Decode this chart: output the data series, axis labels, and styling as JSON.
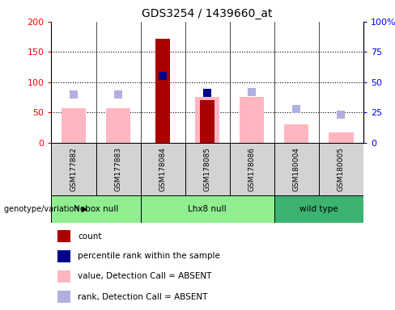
{
  "title": "GDS3254 / 1439660_at",
  "samples": [
    "GSM177882",
    "GSM177883",
    "GSM178084",
    "GSM178085",
    "GSM178086",
    "GSM180004",
    "GSM180005"
  ],
  "count_values": [
    null,
    null,
    172,
    70,
    null,
    null,
    null
  ],
  "value_absent": [
    57,
    57,
    null,
    75,
    75,
    30,
    17
  ],
  "rank_absent_right": [
    40,
    40,
    null,
    null,
    42,
    28,
    23
  ],
  "percentile_rank_right": [
    null,
    null,
    55,
    41,
    null,
    null,
    null
  ],
  "ylim_left": [
    0,
    200
  ],
  "ylim_right": [
    0,
    100
  ],
  "yticks_left": [
    0,
    50,
    100,
    150,
    200
  ],
  "yticks_right": [
    0,
    25,
    50,
    75,
    100
  ],
  "yticklabels_left": [
    "0",
    "50",
    "100",
    "150",
    "200"
  ],
  "yticklabels_right": [
    "0",
    "25",
    "50",
    "75",
    "100%"
  ],
  "color_count": "#AA0000",
  "color_percentile": "#00008B",
  "color_value_absent": "#FFB6C1",
  "color_rank_absent": "#B0B0E0",
  "legend_items": [
    {
      "label": "count",
      "color": "#AA0000"
    },
    {
      "label": "percentile rank within the sample",
      "color": "#00008B"
    },
    {
      "label": "value, Detection Call = ABSENT",
      "color": "#FFB6C1"
    },
    {
      "label": "rank, Detection Call = ABSENT",
      "color": "#B0B0E0"
    }
  ],
  "group_info": [
    {
      "label": "Nobox null",
      "start": 0,
      "end": 1,
      "color": "#90EE90"
    },
    {
      "label": "Lhx8 null",
      "start": 2,
      "end": 4,
      "color": "#90EE90"
    },
    {
      "label": "wild type",
      "start": 5,
      "end": 6,
      "color": "#3CB371"
    }
  ],
  "group_label": "genotype/variation",
  "dot_size": 55
}
